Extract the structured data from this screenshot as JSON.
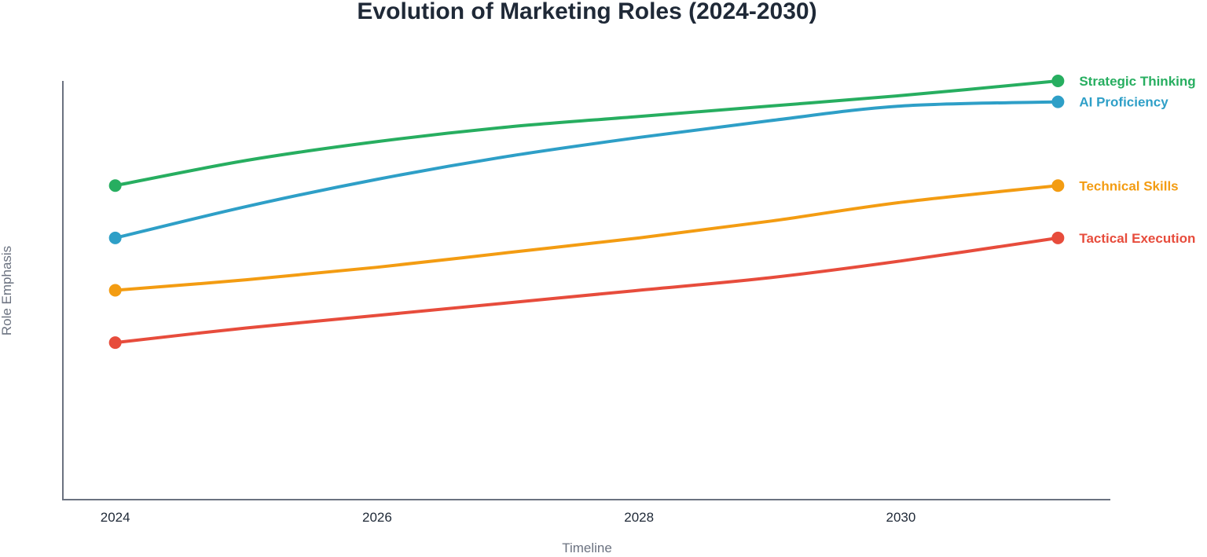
{
  "chart_data": {
    "type": "line",
    "title": "Evolution of Marketing Roles (2024-2030)",
    "xlabel": "Timeline",
    "ylabel": "Role Emphasis",
    "x_ticks": [
      2024,
      2026,
      2028,
      2030
    ],
    "xlim": [
      2023.6,
      2031.6
    ],
    "ylim": [
      0,
      100
    ],
    "grid": false,
    "legend": "labels at line ends (right)",
    "series": [
      {
        "name": "Strategic Thinking",
        "color": "#27ae60",
        "points": [
          [
            2024,
            75
          ],
          [
            2025,
            81
          ],
          [
            2026,
            85.5
          ],
          [
            2027,
            89
          ],
          [
            2028,
            91.5
          ],
          [
            2029,
            94
          ],
          [
            2030,
            96.5
          ],
          [
            2031.2,
            100
          ]
        ]
      },
      {
        "name": "AI Proficiency",
        "color": "#2e9fc7",
        "points": [
          [
            2024,
            62.5
          ],
          [
            2025,
            70
          ],
          [
            2026,
            76.5
          ],
          [
            2027,
            82
          ],
          [
            2028,
            86.5
          ],
          [
            2029,
            90.5
          ],
          [
            2030,
            94
          ],
          [
            2031.2,
            95
          ]
        ]
      },
      {
        "name": "Technical Skills",
        "color": "#f39c12",
        "points": [
          [
            2024,
            50
          ],
          [
            2025,
            52.5
          ],
          [
            2026,
            55.5
          ],
          [
            2027,
            59
          ],
          [
            2028,
            62.5
          ],
          [
            2029,
            66.5
          ],
          [
            2030,
            71
          ],
          [
            2031.2,
            75
          ]
        ]
      },
      {
        "name": "Tactical Execution",
        "color": "#e74c3c",
        "points": [
          [
            2024,
            37.5
          ],
          [
            2025,
            41
          ],
          [
            2026,
            44
          ],
          [
            2027,
            47
          ],
          [
            2028,
            50
          ],
          [
            2029,
            53
          ],
          [
            2030,
            57
          ],
          [
            2031.2,
            62.5
          ]
        ]
      }
    ]
  }
}
